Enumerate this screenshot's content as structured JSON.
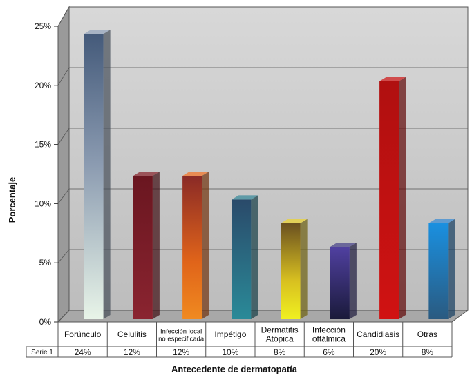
{
  "chart_data": {
    "type": "bar",
    "title": "",
    "xlabel": "Antecedente de dermatopatía",
    "ylabel": "Porcentaje",
    "ylim": [
      0,
      25
    ],
    "yticks": [
      "0%",
      "5%",
      "10%",
      "15%",
      "20%",
      "25%"
    ],
    "grid": true,
    "legend": "none",
    "categories": [
      [
        "Forúnculo"
      ],
      [
        "Celulitis"
      ],
      [
        "Infección local",
        "no especificada"
      ],
      [
        "Impétigo"
      ],
      [
        "Dermatitis",
        "Atópica"
      ],
      [
        "Infección",
        "oftálmica"
      ],
      [
        "Candidiasis"
      ],
      [
        "Otras"
      ]
    ],
    "series": [
      {
        "name": "Serie 1",
        "values": [
          24,
          12,
          12,
          10,
          8,
          6,
          20,
          8
        ],
        "labels": [
          "24%",
          "12%",
          "12%",
          "10%",
          "8%",
          "6%",
          "20%",
          "8%"
        ]
      }
    ],
    "colors": [
      "#8a9ab0",
      "#7a1a22",
      "#e0641a",
      "#2a7a8a",
      "#d8c020",
      "#3a3478",
      "#c01010",
      "#2a7ac0"
    ]
  }
}
